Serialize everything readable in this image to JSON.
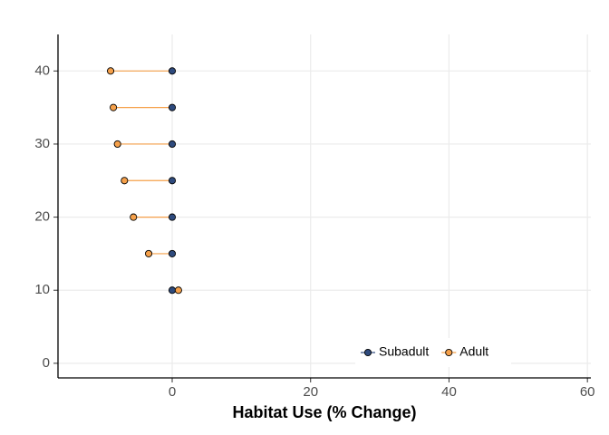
{
  "chart_data": {
    "type": "dumbbell",
    "x_label": "Habitat Use (% Change)",
    "y": [
      10,
      15,
      20,
      25,
      30,
      35,
      40
    ],
    "series": [
      {
        "name": "Subadult",
        "color": "#2e4a7d",
        "x": [
          0,
          0,
          0,
          0,
          0,
          0,
          0
        ]
      },
      {
        "name": "Adult",
        "color": "#f5a04a",
        "x": [
          0.9,
          -3.4,
          -5.6,
          -6.9,
          -7.9,
          -8.5,
          -8.9
        ]
      }
    ],
    "connector_color": "#f5a04a",
    "xlim": [
      -16.5,
      60.5
    ],
    "xticks": [
      0,
      20,
      40,
      60
    ],
    "ylim": [
      -2,
      45
    ],
    "yticks": [
      0,
      10,
      20,
      30,
      40
    ],
    "grid": true,
    "legend": "bottom-right"
  }
}
